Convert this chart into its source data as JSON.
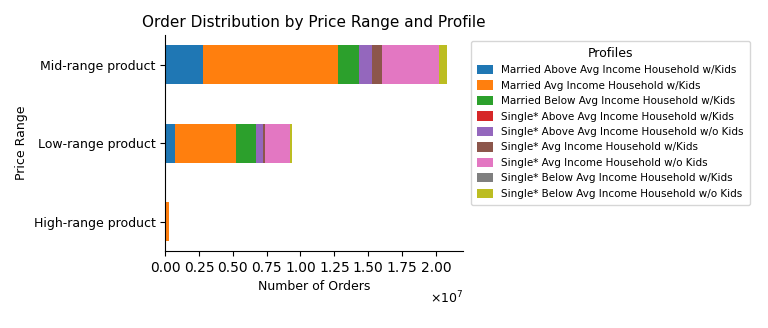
{
  "title": "Order Distribution by Price Range and Profile",
  "xlabel": "Number of Orders",
  "ylabel": "Price Range",
  "categories": [
    "High-range product",
    "Low-range product",
    "Mid-range product"
  ],
  "profiles": [
    "Married Above Avg Income Household w/Kids",
    "Married Avg Income Household w/Kids",
    "Married Below Avg Income Household w/Kids",
    "Single* Above Avg Income Household w/Kids",
    "Single* Above Avg Income Household w/o Kids",
    "Single* Avg Income Household w/Kids",
    "Single* Avg Income Household w/o Kids",
    "Single* Below Avg Income Household w/Kids",
    "Single* Below Avg Income Household w/o Kids"
  ],
  "colors": [
    "#1f77b4",
    "#ff7f0e",
    "#2ca02c",
    "#d62728",
    "#9467bd",
    "#8c564b",
    "#e377c2",
    "#7f7f7f",
    "#bcbd22"
  ],
  "values": {
    "High-range product": [
      50000,
      200000,
      0,
      0,
      0,
      0,
      0,
      0,
      0
    ],
    "Low-range product": [
      700000,
      4500000,
      1500000,
      0,
      500000,
      200000,
      1800000,
      0,
      200000
    ],
    "Mid-range product": [
      2800000,
      10000000,
      1500000,
      0,
      1000000,
      700000,
      4200000,
      0,
      600000
    ]
  },
  "legend_title": "Profiles",
  "xlim": [
    0,
    22000000.0
  ],
  "x_ticks": [
    0,
    2500000,
    5000000,
    7500000,
    10000000,
    12500000,
    15000000,
    17500000,
    20000000
  ],
  "figsize": [
    7.68,
    3.28
  ],
  "dpi": 100
}
